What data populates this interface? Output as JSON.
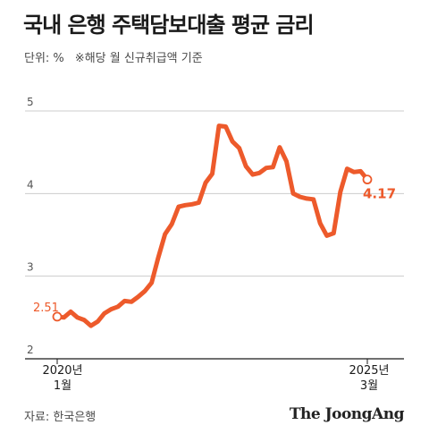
{
  "header": {
    "title": "국내 은행 주택담보대출 평균 금리",
    "unit": "단위: %",
    "note": "※해당 월 신규취급액 기준"
  },
  "footer": {
    "source": "자료: 한국은행",
    "logo": "The JoongAng"
  },
  "colors": {
    "line": "#ed5a2b",
    "grid": "#cccccc",
    "axis": "#555555",
    "text": "#1a1a1a"
  },
  "chart_data": {
    "type": "line",
    "title": "국내 은행 주택담보대출 평균 금리",
    "unit": "%",
    "ylim": [
      2,
      5
    ],
    "yticks": [
      "2",
      "3",
      "4",
      "5"
    ],
    "x_start_label": [
      "2020년",
      "1월"
    ],
    "x_end_label": [
      "2025년",
      "3월"
    ],
    "start_label": "2.51",
    "end_label": "4.17",
    "series": [
      {
        "values": [
          2.51,
          2.5,
          2.57,
          2.5,
          2.47,
          2.4,
          2.45,
          2.55,
          2.6,
          2.63,
          2.7,
          2.69,
          2.75,
          2.82,
          2.92,
          3.23,
          3.51,
          3.63,
          3.84,
          3.86,
          3.87,
          3.89,
          4.13,
          4.24,
          4.82,
          4.81,
          4.63,
          4.55,
          4.33,
          4.23,
          4.25,
          4.31,
          4.32,
          4.56,
          4.39,
          4.0,
          3.96,
          3.94,
          3.93,
          3.64,
          3.49,
          3.52,
          4.02,
          4.3,
          4.26,
          4.27,
          4.17
        ]
      }
    ]
  }
}
